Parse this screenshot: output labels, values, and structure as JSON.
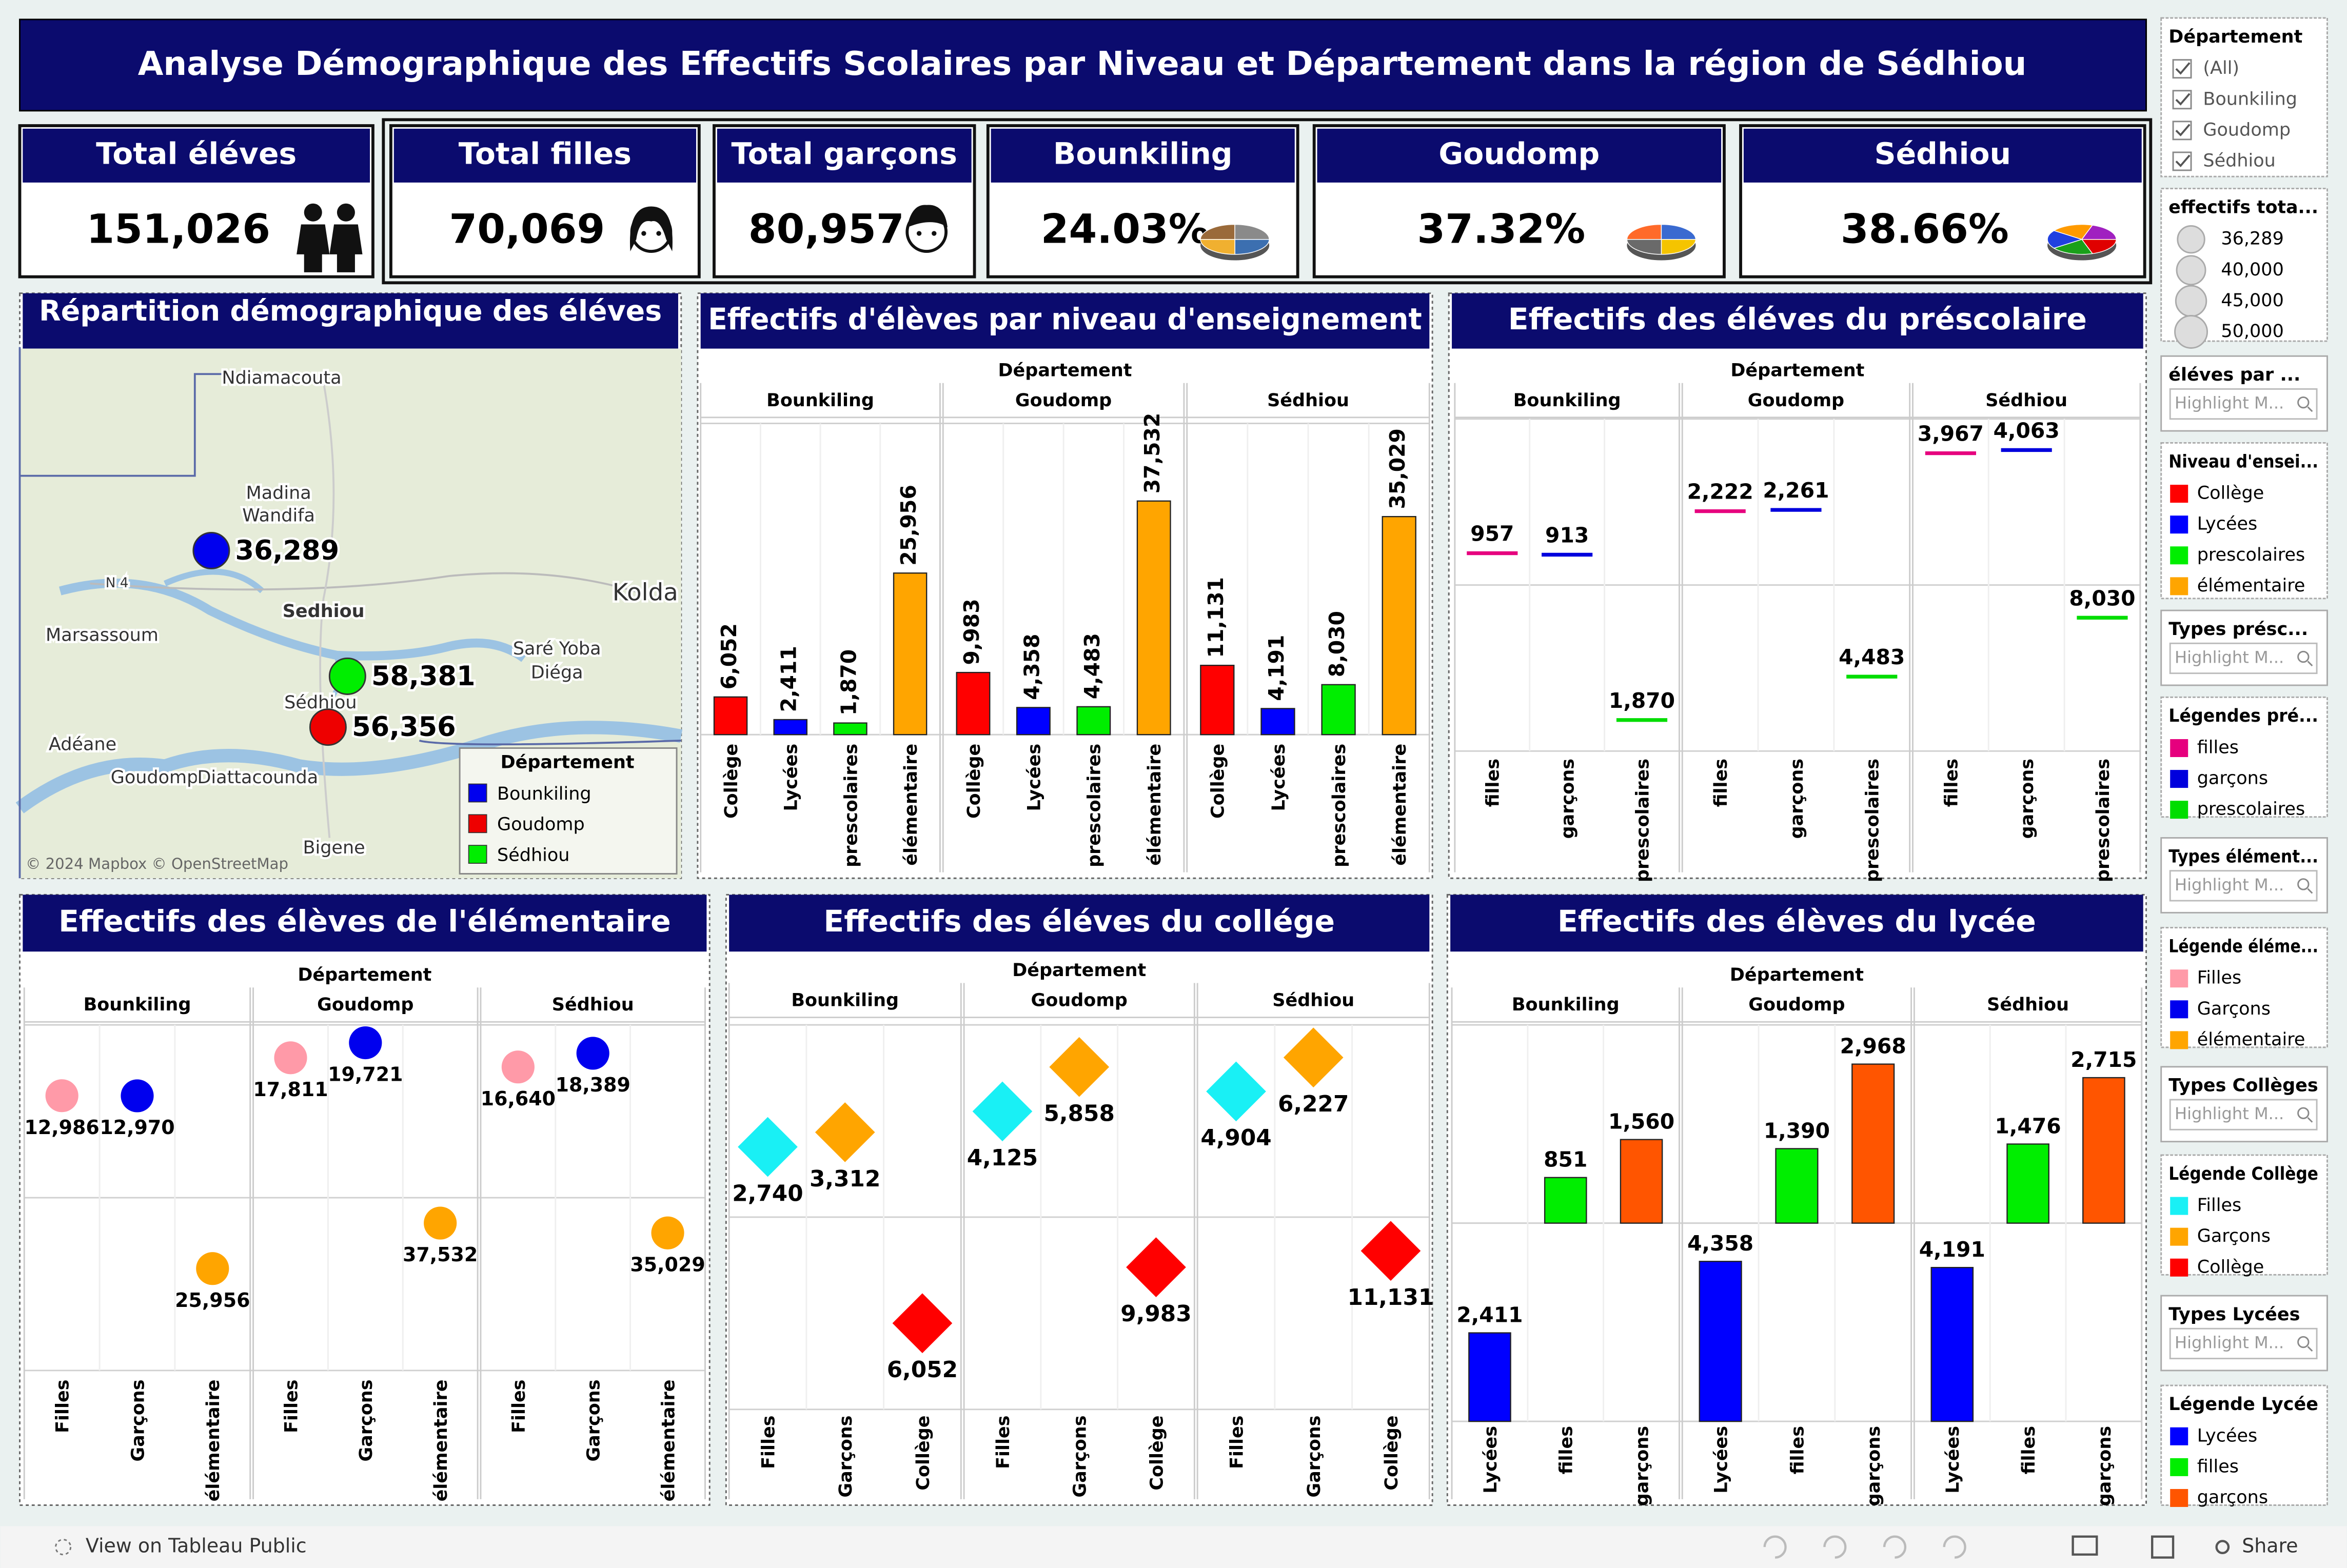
{
  "header": {
    "title": "Analyse Démographique des Effectifs Scolaires par Niveau et Département dans la région de Sédhiou"
  },
  "kpis": [
    {
      "label": "Total éléves",
      "value": "151,026"
    },
    {
      "label": "Total filles",
      "value": "70,069"
    },
    {
      "label": "Total garçons",
      "value": "80,957"
    },
    {
      "label": "Bounkiling",
      "value": "24.03%"
    },
    {
      "label": "Goudomp",
      "value": "37.32%"
    },
    {
      "label": "Sédhiou",
      "value": "38.66%"
    }
  ],
  "chart_data": [
    {
      "type": "map",
      "title": "Répartition démographique des éléves",
      "places": [
        "Ndiamacouta",
        "Madina",
        "Wandifa",
        "Sedhiou",
        "Kolda",
        "Marsassoum",
        "Saré Yoba",
        "Diéga",
        "Sédhiou",
        "Adéane",
        "Goudomp",
        "Diattacounda",
        "Bigene",
        "N 4"
      ],
      "attribution": "© 2024 Mapbox © OpenStreetMap",
      "legend_title": "Département",
      "series": [
        {
          "name": "Bounkiling",
          "color": "#0000ee",
          "values": [
            36289
          ],
          "value_labels": [
            "36,289"
          ]
        },
        {
          "name": "Goudomp",
          "color": "#ee0000",
          "values": [
            56356
          ],
          "value_labels": [
            "56,356"
          ]
        },
        {
          "name": "Sédhiou",
          "color": "#00ee00",
          "values": [
            58381
          ],
          "value_labels": [
            "58,381"
          ]
        }
      ]
    },
    {
      "type": "bar",
      "title": "Effectifs d'élèves par niveau d'enseignement",
      "facet_label": "Département",
      "groups": [
        "Bounkiling",
        "Goudomp",
        "Sédhiou"
      ],
      "categories": [
        "Collège",
        "Lycées",
        "prescolaires",
        "élémentaire"
      ],
      "colors": [
        "#ff0000",
        "#0000ff",
        "#00ee00",
        "#ffa500"
      ],
      "rows": [
        0,
        0,
        0,
        0
      ],
      "ylims": [
        [
          0,
          50000
        ]
      ],
      "label_rotate": true,
      "values": [
        [
          6052,
          2411,
          1870,
          25956
        ],
        [
          9983,
          4358,
          4483,
          37532
        ],
        [
          11131,
          4191,
          8030,
          35029
        ]
      ],
      "value_labels": [
        [
          "6,052",
          "2,411",
          "1,870",
          "25,956"
        ],
        [
          "9,983",
          "4,358",
          "4,483",
          "37,532"
        ],
        [
          "11,131",
          "4,191",
          "8,030",
          "35,029"
        ]
      ]
    },
    {
      "type": "tick",
      "title": "Effectifs des éléves du préscolaire",
      "facet_label": "Département",
      "groups": [
        "Bounkiling",
        "Goudomp",
        "Sédhiou"
      ],
      "categories": [
        "filles",
        "garçons",
        "prescolaires"
      ],
      "colors": [
        "#e6007e",
        "#0000dd",
        "#00dd00"
      ],
      "rows": [
        0,
        0,
        1
      ],
      "ylims": [
        [
          0,
          5000
        ],
        [
          0,
          10000
        ]
      ],
      "values": [
        [
          957,
          913,
          1870
        ],
        [
          2222,
          2261,
          4483
        ],
        [
          3967,
          4063,
          8030
        ]
      ],
      "value_labels": [
        [
          "957",
          "913",
          "1,870"
        ],
        [
          "2,222",
          "2,261",
          "4,483"
        ],
        [
          "3,967",
          "4,063",
          "8,030"
        ]
      ]
    },
    {
      "type": "scatter",
      "marker": "circle",
      "title": "Effectifs des élèves de l'élémentaire",
      "facet_label": "Département",
      "groups": [
        "Bounkiling",
        "Goudomp",
        "Sédhiou"
      ],
      "categories": [
        "Filles",
        "Garçons",
        "élémentaire"
      ],
      "colors": [
        "#ff9aa8",
        "#0000ee",
        "#ffa500"
      ],
      "rows": [
        0,
        0,
        1
      ],
      "ylims": [
        [
          0,
          22000
        ],
        [
          0,
          44000
        ]
      ],
      "values": [
        [
          12986,
          12970,
          25956
        ],
        [
          17811,
          19721,
          37532
        ],
        [
          16640,
          18389,
          35029
        ]
      ],
      "value_labels": [
        [
          "12,986",
          "12,970",
          "25,956"
        ],
        [
          "17,811",
          "19,721",
          "37,532"
        ],
        [
          "16,640",
          "18,389",
          "35,029"
        ]
      ]
    },
    {
      "type": "scatter",
      "marker": "diamond",
      "title": "Effectifs des éléves du collége",
      "facet_label": "Département",
      "groups": [
        "Bounkiling",
        "Goudomp",
        "Sédhiou"
      ],
      "categories": [
        "Filles",
        "Garçons",
        "Collège"
      ],
      "colors": [
        "#19f0f5",
        "#ffa500",
        "#ff0000"
      ],
      "rows": [
        0,
        0,
        1
      ],
      "ylims": [
        [
          0,
          7500
        ],
        [
          0,
          13500
        ]
      ],
      "values": [
        [
          2740,
          3312,
          6052
        ],
        [
          4125,
          5858,
          9983
        ],
        [
          4904,
          6227,
          11131
        ]
      ],
      "value_labels": [
        [
          "2,740",
          "3,312",
          "6,052"
        ],
        [
          "4,125",
          "5,858",
          "9,983"
        ],
        [
          "4,904",
          "6,227",
          "11,131"
        ]
      ]
    },
    {
      "type": "bar",
      "title": "Effectifs des élèves du lycée",
      "facet_label": "Département",
      "groups": [
        "Bounkiling",
        "Goudomp",
        "Sédhiou"
      ],
      "categories": [
        "Lycées",
        "filles",
        "garçons"
      ],
      "colors": [
        "#0000ff",
        "#00ee00",
        "#ff5500"
      ],
      "rows": [
        1,
        0,
        0
      ],
      "ylims": [
        [
          0,
          3700
        ],
        [
          0,
          5400
        ]
      ],
      "label_rotate": false,
      "values": [
        [
          2411,
          851,
          1560
        ],
        [
          4358,
          1390,
          2968
        ],
        [
          4191,
          1476,
          2715
        ]
      ],
      "value_labels": [
        [
          "2,411",
          "851",
          "1,560"
        ],
        [
          "4,358",
          "1,390",
          "2,968"
        ],
        [
          "4,191",
          "1,476",
          "2,715"
        ]
      ]
    }
  ],
  "sidebar": [
    {
      "title": "Département",
      "kind": "check",
      "items": [
        "(All)",
        "Bounkiling",
        "Goudomp",
        "Sédhiou"
      ]
    },
    {
      "title": "effectifs tota...",
      "kind": "size",
      "items": [
        "36,289",
        "40,000",
        "45,000",
        "50,000"
      ]
    },
    {
      "title": "éléves par ...",
      "search": "Highlight M..."
    },
    {
      "title": "Niveau d'ensei...",
      "items": [
        "Collège",
        "Lycées",
        "prescolaires",
        "élémentaire"
      ],
      "colors": [
        "#ff0000",
        "#0000ff",
        "#00ee00",
        "#ffa500"
      ]
    },
    {
      "title": "Types présc...",
      "search": "Highlight M..."
    },
    {
      "title": "Légendes pré...",
      "items": [
        "filles",
        "garçons",
        "prescolaires"
      ],
      "colors": [
        "#e6007e",
        "#0000dd",
        "#00dd00"
      ]
    },
    {
      "title": "Types élément...",
      "search": "Highlight M..."
    },
    {
      "title": "Légende éléme...",
      "items": [
        "Filles",
        "Garçons",
        "élémentaire"
      ],
      "colors": [
        "#ff9aa8",
        "#0000ee",
        "#ffa500"
      ]
    },
    {
      "title": "Types Collèges",
      "search": "Highlight M..."
    },
    {
      "title": "Légende Collège",
      "items": [
        "Filles",
        "Garçons",
        "Collège"
      ],
      "colors": [
        "#19f0f5",
        "#ffa500",
        "#ff0000"
      ]
    },
    {
      "title": "Types Lycées",
      "search": "Highlight M..."
    },
    {
      "title": "Légende Lycée",
      "items": [
        "Lycées",
        "filles",
        "garçons"
      ],
      "colors": [
        "#0000ff",
        "#00ee00",
        "#ff5500"
      ]
    }
  ],
  "footer": {
    "link": "View on Tableau Public",
    "share": "Share"
  }
}
